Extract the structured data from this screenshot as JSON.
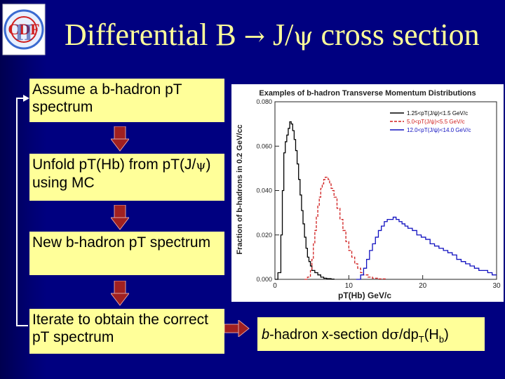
{
  "slide": {
    "title_a": "Differential B ",
    "title_arrow": "→",
    "title_b": " J/",
    "title_psi": "ψ",
    "title_c": " cross section",
    "logo_letters": "CDF",
    "logo_roman": "II"
  },
  "steps": [
    {
      "text": "Assume a b-hadron pT spectrum"
    },
    {
      "text_a": "Unfold pT(Hb) from pT(J/",
      "psi": "ψ",
      "text_b": ") using MC"
    },
    {
      "text": "New b-hadron pT spectrum"
    },
    {
      "text": "Iterate to obtain the correct pT spectrum"
    }
  ],
  "result": {
    "italic_b": "b",
    "text_a": "-hadron x-section d",
    "sigma": "σ",
    "text_b": "/dp",
    "sub_T": "T",
    "text_c": "(H",
    "sub_b": "b",
    "text_d": ")"
  },
  "colors": {
    "background": "#000080",
    "box_fill": "#ffff99",
    "arrow_fill": "#a02020",
    "title": "#ffff99"
  },
  "chart_data": {
    "type": "line",
    "title": "Examples of b-hadron Transverse Momentum Distributions",
    "xlabel": "pT(Hb) GeV/c",
    "ylabel": "Fraction of b-hadrons in 0.2 GeV/cc",
    "xlim": [
      0,
      30
    ],
    "ylim": [
      0,
      0.08
    ],
    "xticks": [
      "0",
      "10",
      "20",
      "30"
    ],
    "yticks": [
      "0.000",
      "0.020",
      "0.040",
      "0.060",
      "0.080"
    ],
    "legend_position": "top-right",
    "series": [
      {
        "name": "1.25<pT(J/ψ)<1.5 GeV/c",
        "color": "#000000",
        "x": [
          0.0,
          0.4,
          0.8,
          1.0,
          1.2,
          1.4,
          1.6,
          1.8,
          2.0,
          2.2,
          2.4,
          2.6,
          2.8,
          3.0,
          3.2,
          3.4,
          3.6,
          3.8,
          4.0,
          4.2,
          4.4,
          4.6,
          4.8,
          5.0,
          5.4,
          5.8,
          6.2,
          6.6,
          7.0,
          7.6,
          8.0
        ],
        "y": [
          0.0,
          0.003,
          0.02,
          0.04,
          0.057,
          0.062,
          0.065,
          0.068,
          0.071,
          0.07,
          0.067,
          0.063,
          0.058,
          0.052,
          0.045,
          0.038,
          0.031,
          0.025,
          0.019,
          0.014,
          0.01,
          0.008,
          0.006,
          0.004,
          0.003,
          0.002,
          0.001,
          0.0005,
          0.0003,
          0.0001,
          0.0
        ]
      },
      {
        "name": "5.0<pT(J/ψ)<5.5 GeV/c",
        "color": "#d02020",
        "dashed": true,
        "x": [
          4.0,
          4.4,
          4.8,
          5.0,
          5.2,
          5.4,
          5.6,
          5.8,
          6.0,
          6.2,
          6.4,
          6.6,
          6.8,
          7.0,
          7.2,
          7.4,
          7.6,
          7.8,
          8.0,
          8.4,
          8.8,
          9.2,
          9.6,
          10.0,
          10.4,
          10.8,
          11.2,
          11.6,
          12.0,
          12.6,
          13.2,
          14.0,
          15.0
        ],
        "y": [
          0.0,
          0.001,
          0.004,
          0.009,
          0.016,
          0.022,
          0.028,
          0.033,
          0.037,
          0.041,
          0.043,
          0.045,
          0.046,
          0.046,
          0.045,
          0.043,
          0.041,
          0.04,
          0.037,
          0.032,
          0.027,
          0.022,
          0.017,
          0.013,
          0.01,
          0.007,
          0.005,
          0.003,
          0.002,
          0.001,
          0.0005,
          0.0002,
          0.0
        ]
      },
      {
        "name": "12.0<pT(J/ψ)<14.0 GeV/c",
        "color": "#1010c0",
        "x": [
          11.0,
          11.6,
          12.0,
          12.4,
          12.8,
          13.2,
          13.6,
          14.0,
          14.4,
          14.8,
          15.2,
          15.6,
          16.0,
          16.4,
          16.8,
          17.2,
          17.6,
          18.0,
          18.6,
          19.2,
          19.8,
          20.4,
          21.0,
          21.6,
          22.2,
          22.8,
          23.4,
          24.0,
          24.6,
          25.2,
          25.8,
          26.4,
          27.0,
          27.6,
          28.2,
          28.8,
          29.4,
          30.0
        ],
        "y": [
          0.0,
          0.002,
          0.005,
          0.009,
          0.013,
          0.016,
          0.019,
          0.022,
          0.024,
          0.026,
          0.027,
          0.027,
          0.028,
          0.027,
          0.026,
          0.025,
          0.024,
          0.023,
          0.022,
          0.02,
          0.019,
          0.018,
          0.016,
          0.015,
          0.014,
          0.013,
          0.012,
          0.011,
          0.009,
          0.008,
          0.007,
          0.006,
          0.005,
          0.004,
          0.004,
          0.003,
          0.002,
          0.002
        ]
      }
    ]
  }
}
